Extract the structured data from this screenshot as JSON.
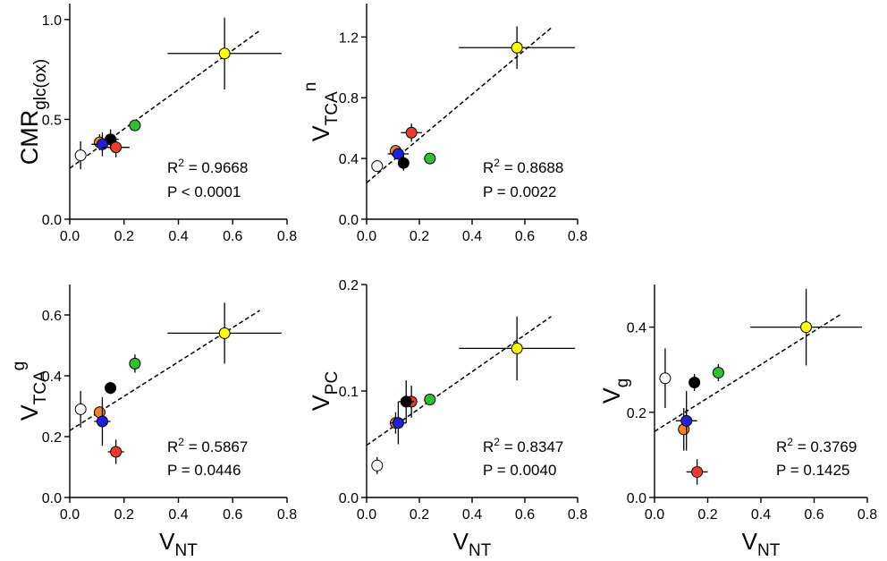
{
  "chart_data": [
    {
      "type": "scatter",
      "ylabel": {
        "main": "CMR",
        "sub": "glc(ox)",
        "sup": ""
      },
      "xlabel": {
        "main": "V",
        "sub": "NT"
      },
      "xlim": [
        0,
        0.8
      ],
      "ylim": [
        0,
        1.08
      ],
      "xticks": [
        "0.0",
        "0.2",
        "0.4",
        "0.6",
        "0.8"
      ],
      "yticks": [
        [
          "0.0",
          0
        ],
        [
          "0.5",
          0.5
        ],
        [
          "1.0",
          1.0
        ]
      ],
      "fit": [
        [
          0,
          0.255
        ],
        [
          0.7,
          0.945
        ]
      ],
      "stats": {
        "r2_prefix": "R",
        "r2_exp": "2",
        "r2_value": " = 0.9668",
        "p": "P < 0.0001"
      },
      "points": [
        {
          "color": "#ffffff",
          "x": 0.04,
          "y": 0.32,
          "xerr": 0,
          "yerr": 0.07
        },
        {
          "color": "#f5821f",
          "x": 0.11,
          "y": 0.385,
          "xerr": 0.01,
          "yerr": 0.04
        },
        {
          "color": "#000000",
          "x": 0.15,
          "y": 0.4,
          "xerr": 0.03,
          "yerr": 0.05
        },
        {
          "color": "#1f1fe0",
          "x": 0.12,
          "y": 0.375,
          "xerr": 0.04,
          "yerr": 0.06
        },
        {
          "color": "#ee3b2c",
          "x": 0.17,
          "y": 0.36,
          "xerr": 0.05,
          "yerr": 0.05
        },
        {
          "color": "#2dc22d",
          "x": 0.24,
          "y": 0.47,
          "xerr": 0,
          "yerr": 0.02
        },
        {
          "color": "#ffff00",
          "x": 0.57,
          "y": 0.83,
          "xerr": 0.21,
          "yerr": 0.18
        }
      ]
    },
    {
      "type": "scatter",
      "ylabel": {
        "main": "V",
        "sub": "TCA",
        "sup": "n"
      },
      "xlabel": {
        "main": "V",
        "sub": "NT"
      },
      "xlim": [
        0,
        0.8
      ],
      "ylim": [
        0,
        1.42
      ],
      "xticks": [
        "0.0",
        "0.2",
        "0.4",
        "0.6",
        "0.8"
      ],
      "yticks": [
        [
          "0.0",
          0
        ],
        [
          "0.4",
          0.4
        ],
        [
          "0.8",
          0.8
        ],
        [
          "1.2",
          1.2
        ]
      ],
      "fit": [
        [
          0,
          0.24
        ],
        [
          0.7,
          1.26
        ]
      ],
      "stats": {
        "r2_prefix": "R",
        "r2_exp": "2",
        "r2_value": " = 0.8688",
        "p": "P = 0.0022"
      },
      "points": [
        {
          "color": "#ffffff",
          "x": 0.04,
          "y": 0.35,
          "xerr": 0,
          "yerr": 0
        },
        {
          "color": "#f5821f",
          "x": 0.11,
          "y": 0.45,
          "xerr": 0.02,
          "yerr": 0.02
        },
        {
          "color": "#1f1fe0",
          "x": 0.12,
          "y": 0.43,
          "xerr": 0.04,
          "yerr": 0.03
        },
        {
          "color": "#000000",
          "x": 0.14,
          "y": 0.37,
          "xerr": 0.02,
          "yerr": 0.05
        },
        {
          "color": "#ee3b2c",
          "x": 0.17,
          "y": 0.57,
          "xerr": 0.04,
          "yerr": 0.06
        },
        {
          "color": "#2dc22d",
          "x": 0.24,
          "y": 0.4,
          "xerr": 0,
          "yerr": 0
        },
        {
          "color": "#ffff00",
          "x": 0.57,
          "y": 1.13,
          "xerr": 0.22,
          "yerr": 0.14
        }
      ]
    },
    {
      "type": "scatter",
      "ylabel": {
        "main": "V",
        "sub": "TCA",
        "sup": "g"
      },
      "xlabel": {
        "main": "V",
        "sub": "NT"
      },
      "xlim": [
        0,
        0.8
      ],
      "ylim": [
        0,
        0.7
      ],
      "xticks": [
        "0.0",
        "0.2",
        "0.4",
        "0.6",
        "0.8"
      ],
      "yticks": [
        [
          "0.0",
          0
        ],
        [
          "0.2",
          0.2
        ],
        [
          "0.4",
          0.4
        ],
        [
          "0.6",
          0.6
        ]
      ],
      "fit": [
        [
          0,
          0.22
        ],
        [
          0.7,
          0.615
        ]
      ],
      "stats": {
        "r2_prefix": "R",
        "r2_exp": "2",
        "r2_value": " = 0.5867",
        "p": "P = 0.0446"
      },
      "points": [
        {
          "color": "#ffffff",
          "x": 0.04,
          "y": 0.29,
          "xerr": 0,
          "yerr": 0.06
        },
        {
          "color": "#f5821f",
          "x": 0.11,
          "y": 0.28,
          "xerr": 0.01,
          "yerr": 0.02
        },
        {
          "color": "#000000",
          "x": 0.15,
          "y": 0.36,
          "xerr": 0,
          "yerr": 0.02
        },
        {
          "color": "#1f1fe0",
          "x": 0.12,
          "y": 0.25,
          "xerr": 0.03,
          "yerr": 0.08
        },
        {
          "color": "#ee3b2c",
          "x": 0.17,
          "y": 0.15,
          "xerr": 0.03,
          "yerr": 0.04
        },
        {
          "color": "#2dc22d",
          "x": 0.24,
          "y": 0.44,
          "xerr": 0,
          "yerr": 0.03
        },
        {
          "color": "#ffff00",
          "x": 0.57,
          "y": 0.54,
          "xerr": 0.21,
          "yerr": 0.1
        }
      ]
    },
    {
      "type": "scatter",
      "ylabel": {
        "main": "V",
        "sub": "PC",
        "sup": ""
      },
      "xlabel": {
        "main": "V",
        "sub": "NT"
      },
      "xlim": [
        0,
        0.8
      ],
      "ylim": [
        0,
        0.2
      ],
      "xticks": [
        "0.0",
        "0.2",
        "0.4",
        "0.6",
        "0.8"
      ],
      "yticks": [
        [
          "0.0",
          0
        ],
        [
          "0.1",
          0.1
        ],
        [
          "0.2",
          0.2
        ]
      ],
      "fit": [
        [
          0,
          0.049
        ],
        [
          0.7,
          0.17
        ]
      ],
      "stats": {
        "r2_prefix": "R",
        "r2_exp": "2",
        "r2_value": " = 0.8347",
        "p": "P = 0.0040"
      },
      "points": [
        {
          "color": "#ffffff",
          "x": 0.04,
          "y": 0.03,
          "xerr": 0,
          "yerr": 0.008
        },
        {
          "color": "#f5821f",
          "x": 0.11,
          "y": 0.07,
          "xerr": 0.02,
          "yerr": 0.01
        },
        {
          "color": "#1f1fe0",
          "x": 0.12,
          "y": 0.07,
          "xerr": 0.03,
          "yerr": 0.02
        },
        {
          "color": "#ee3b2c",
          "x": 0.17,
          "y": 0.09,
          "xerr": 0.02,
          "yerr": 0.015
        },
        {
          "color": "#000000",
          "x": 0.15,
          "y": 0.09,
          "xerr": 0.03,
          "yerr": 0.02
        },
        {
          "color": "#2dc22d",
          "x": 0.24,
          "y": 0.092,
          "xerr": 0.015,
          "yerr": 0.005
        },
        {
          "color": "#ffff00",
          "x": 0.57,
          "y": 0.14,
          "xerr": 0.22,
          "yerr": 0.03
        }
      ]
    },
    {
      "type": "scatter",
      "ylabel": {
        "main": "V",
        "sub": "g",
        "sup": ""
      },
      "xlabel": {
        "main": "V",
        "sub": "NT"
      },
      "xlim": [
        0,
        0.8
      ],
      "ylim": [
        0,
        0.5
      ],
      "xticks": [
        "0.0",
        "0.2",
        "0.4",
        "0.6",
        "0.8"
      ],
      "yticks": [
        [
          "0.0",
          0
        ],
        [
          "0.2",
          0.2
        ],
        [
          "0.4",
          0.4
        ]
      ],
      "fit": [
        [
          0,
          0.155
        ],
        [
          0.7,
          0.43
        ]
      ],
      "stats": {
        "r2_prefix": "R",
        "r2_exp": "2",
        "r2_value": " = 0.3769",
        "p": "P = 0.1425"
      },
      "points": [
        {
          "color": "#ffffff",
          "x": 0.04,
          "y": 0.28,
          "xerr": 0,
          "yerr": 0.07
        },
        {
          "color": "#000000",
          "x": 0.15,
          "y": 0.27,
          "xerr": 0,
          "yerr": 0.02
        },
        {
          "color": "#2dc22d",
          "x": 0.24,
          "y": 0.293,
          "xerr": 0,
          "yerr": 0.02
        },
        {
          "color": "#f5821f",
          "x": 0.11,
          "y": 0.16,
          "xerr": 0.01,
          "yerr": 0.05
        },
        {
          "color": "#1f1fe0",
          "x": 0.12,
          "y": 0.18,
          "xerr": 0.04,
          "yerr": 0.07
        },
        {
          "color": "#ee3b2c",
          "x": 0.16,
          "y": 0.06,
          "xerr": 0.04,
          "yerr": 0.03
        },
        {
          "color": "#ffff00",
          "x": 0.57,
          "y": 0.4,
          "xerr": 0.21,
          "yerr": 0.09
        }
      ]
    }
  ]
}
